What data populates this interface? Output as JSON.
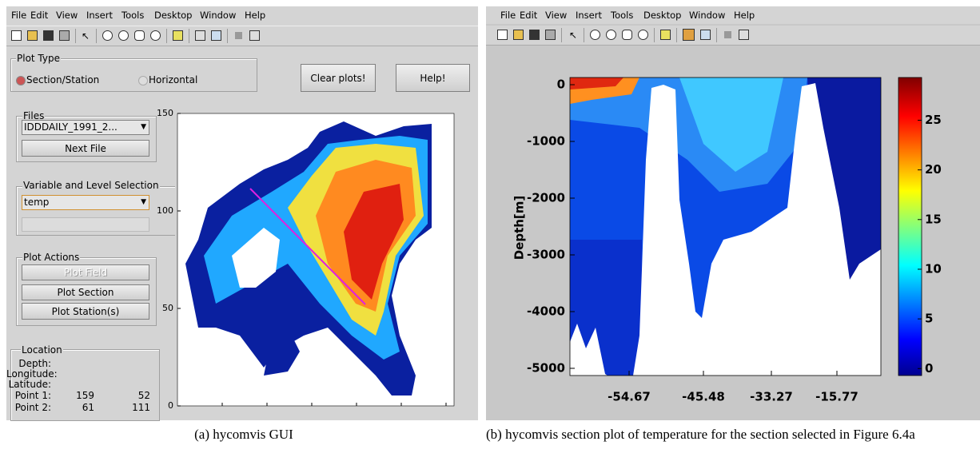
{
  "left_window": {
    "menu": [
      "File",
      "Edit",
      "View",
      "Insert",
      "Tools",
      "Desktop",
      "Window",
      "Help"
    ],
    "plot_type": {
      "title": "Plot Type",
      "options": [
        "Section/Station",
        "Horizontal"
      ]
    },
    "buttons": [
      "Clear plots!",
      "Help!"
    ],
    "files": {
      "title": "Files",
      "selected": "IDDDAILY_1991_2...",
      "button": "Next File"
    },
    "variable": {
      "title": "Variable and Level Selection",
      "selected": "temp"
    },
    "plot_actions": {
      "title": "Plot Actions",
      "buttons": [
        "Plot Field",
        "Plot Section",
        "Plot Station(s)"
      ]
    },
    "location": {
      "title": "Location",
      "labels": [
        "Depth:",
        "Longitude:",
        "Latitude:"
      ],
      "points": [
        {
          "label": "Point 1:",
          "values": [
            159,
            52
          ]
        },
        {
          "label": "Point 2:",
          "values": [
            61,
            111
          ]
        }
      ]
    },
    "map": {
      "ylim": [
        0,
        150
      ],
      "yticks": [
        0,
        50,
        100,
        150
      ]
    }
  },
  "right_window": {
    "menu": [
      "File",
      "Edit",
      "View",
      "Insert",
      "Tools",
      "Desktop",
      "Window",
      "Help"
    ],
    "section_plot": {
      "ylabel": "Depth[m]",
      "ylim": [
        -5127,
        127
      ],
      "yticks": [
        0,
        -1000,
        -2000,
        -3000,
        -4000,
        -5000
      ],
      "xticks": [
        -54.67,
        -45.48,
        -33.27,
        -15.77
      ],
      "colorbar": {
        "lim": [
          -0.7,
          29.3
        ],
        "ticks": [
          0,
          5,
          10,
          15,
          20,
          25
        ]
      }
    }
  },
  "captions": [
    "(a) hycomvis GUI",
    "(b) hycomvis section plot of temperature for the section selected in Figure 6.4a"
  ]
}
